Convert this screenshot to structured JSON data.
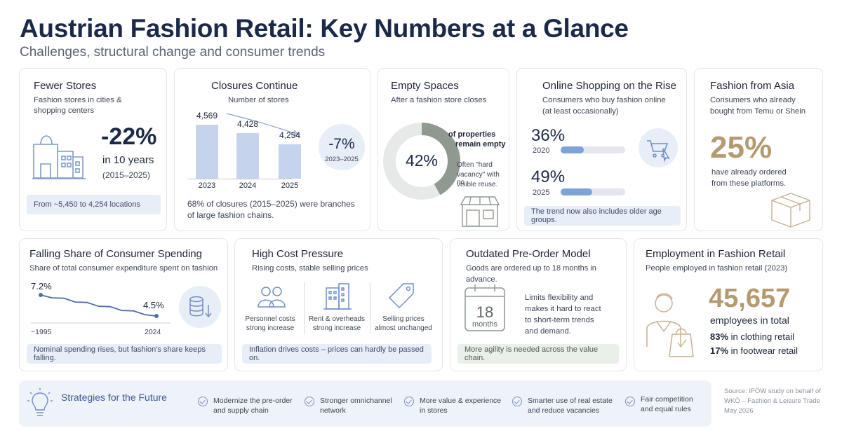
{
  "header": {
    "title": "Austrian Fashion Retail: Key Numbers at a Glance",
    "subtitle": "Challenges, structural change and consumer trends"
  },
  "fewer_stores": {
    "title": "Fewer Stores",
    "subtitle_1": "Fashion stores in cities &",
    "subtitle_2": "shopping centers",
    "big_value": "-22%",
    "period_label": "in 10 years",
    "period_range": "(2015–2025)",
    "note": "From ~5,450 to 4,254 locations"
  },
  "closures": {
    "title": "Closures Continue",
    "subtitle": "Number of stores",
    "badge_value": "-7%",
    "badge_range": "2023–2025",
    "footer_1": "68% of closures (2015–2025) were branches",
    "footer_2": "of large fashion chains.",
    "chart_data": {
      "type": "bar",
      "categories": [
        "2023",
        "2024",
        "2025"
      ],
      "values": [
        4569,
        4428,
        4254
      ],
      "value_labels": [
        "4,569",
        "4,428",
        "4,254"
      ]
    }
  },
  "empty_spaces": {
    "title": "Empty Spaces",
    "subtitle": "After a fashion store closes",
    "donut_label": "42%",
    "label_1": "of properties",
    "label_2": "remain empty",
    "note_1": "Often \"hard",
    "note_2": "vacancy\" with no",
    "note_3": "visible reuse.",
    "chart_data": {
      "type": "pie",
      "values": [
        42,
        58
      ],
      "colors": [
        "#8e998f",
        "#e7e9e8"
      ]
    }
  },
  "online": {
    "title": "Online Shopping on the Rise",
    "subtitle_1": "Consumers who buy fashion online",
    "subtitle_2": "(at least occasionally)",
    "row1_value": "36%",
    "row1_year": "2020",
    "row1_fraction": 0.36,
    "row2_value": "49%",
    "row2_year": "2025",
    "row2_fraction": 0.49,
    "note": "The trend now also includes older age groups."
  },
  "asia": {
    "title": "Fashion from Asia",
    "subtitle_1": "Consumers who already",
    "subtitle_2": "bought from Temu or Shein",
    "big_value": "25%",
    "caption_1": "have already ordered",
    "caption_2": "from these platforms."
  },
  "spending": {
    "title": "Falling Share of Consumer Spending",
    "subtitle": "Share of total consumer expenditure spent on fashion",
    "start_label": "7.2%",
    "end_label": "4.5%",
    "x_start": "~1995",
    "x_end": "2024",
    "note": "Nominal spending rises, but fashion's share keeps falling.",
    "chart_data": {
      "type": "line",
      "x": [
        "~1995",
        "2024"
      ],
      "values": [
        7.2,
        4.5
      ],
      "ylim": [
        4,
        8
      ]
    }
  },
  "cost": {
    "title": "High Cost Pressure",
    "subtitle": "Rising costs, stable selling prices",
    "items": [
      {
        "line1": "Personnel costs",
        "line2": "strong increase"
      },
      {
        "line1": "Rent & overheads",
        "line2": "strong increase"
      },
      {
        "line1": "Selling prices",
        "line2": "almost unchanged"
      }
    ],
    "note": "Inflation drives costs – prices can hardly be passed on."
  },
  "preorder": {
    "title": "Outdated Pre-Order Model",
    "subtitle": "Goods are ordered up to 18 months in advance.",
    "calendar_number": "18",
    "calendar_unit": "months",
    "text_1": "Limits flexibility and",
    "text_2": "makes it hard to react",
    "text_3": "to short-term trends",
    "text_4": "and demand.",
    "note": "More agility is needed across the value chain."
  },
  "employment": {
    "title": "Employment in Fashion Retail",
    "subtitle": "People employed in fashion retail (2023)",
    "big_value": "45,657",
    "caption": "employees in total",
    "split_1_pct": "83%",
    "split_1_label": "in clothing retail",
    "split_2_pct": "17%",
    "split_2_label": "in footwear retail"
  },
  "strategies": {
    "title": "Strategies for the Future",
    "items": [
      {
        "line1": "Modernize the pre-order",
        "line2": "and supply chain"
      },
      {
        "line1": "Stronger omnichannel",
        "line2": "network"
      },
      {
        "line1": "More value & experience",
        "line2": "in stores"
      },
      {
        "line1": "Smarter use of real estate",
        "line2": "and reduce vacancies"
      },
      {
        "line1": "Fair competition",
        "line2": "and equal rules"
      }
    ]
  },
  "source": {
    "line1": "Source: IFÖW study on behalf of",
    "line2": "WKÖ – Fashion & Leisure Trade",
    "line3": "May 2026"
  },
  "colors": {
    "navy": "#1c2a4a",
    "accent_blue": "#7fa3d8",
    "bar_blue": "#c5d4ec",
    "gold": "#b59a70",
    "sage": "#8e998f"
  }
}
